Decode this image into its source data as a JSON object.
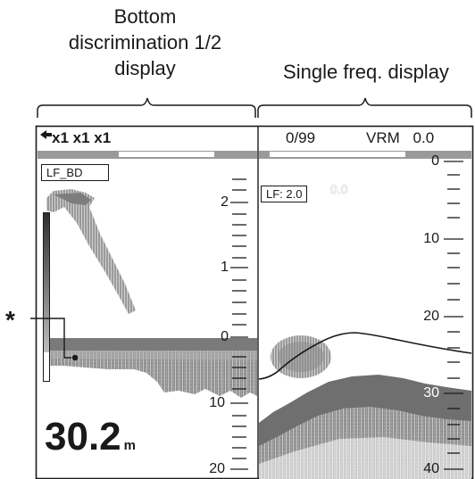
{
  "captions": {
    "left": [
      "Bottom",
      "discrimination 1/2",
      "display"
    ],
    "right": "Single freq. display"
  },
  "header": {
    "mode": "x1 x1 x1",
    "counter": "0/99",
    "vrm_label": "VRM",
    "vrm_value": "0.0"
  },
  "left_panel": {
    "label": "LF_BD",
    "scale_labels": [
      "2",
      "1",
      "0",
      "10",
      "20"
    ],
    "depth_value": "30.2",
    "depth_unit": "m",
    "callout": "*"
  },
  "right_panel": {
    "label": "LF: 2.0",
    "top_value": "0.0",
    "scale_labels": [
      "0",
      "10",
      "20",
      "30",
      "40"
    ]
  },
  "colors": {
    "echo_dark": "#555555",
    "echo_mid": "#8c8c8c",
    "echo_light": "#c4c4c4",
    "bottom_band": "#7a7a7a",
    "frame": "#1a1a1a"
  }
}
